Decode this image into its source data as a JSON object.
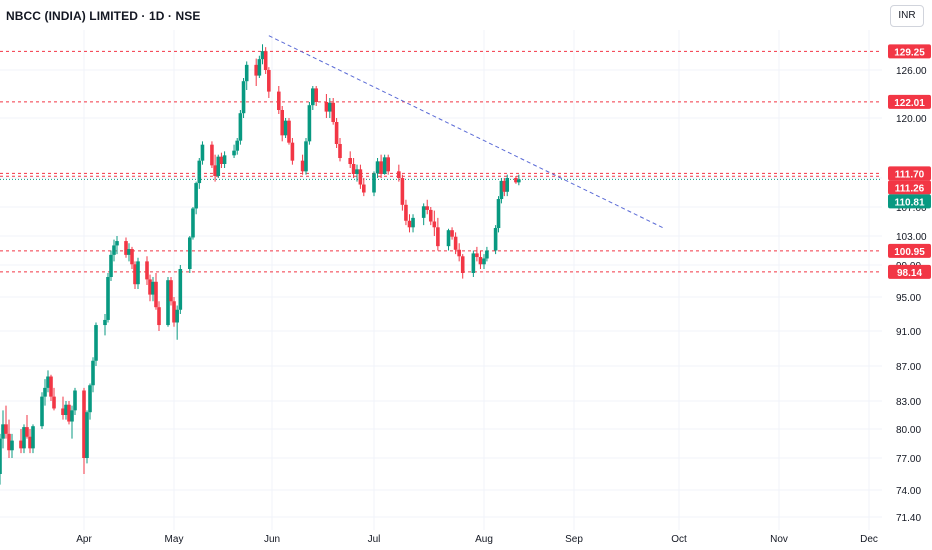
{
  "header": {
    "title": "NBCC (INDIA) LIMITED · 1D · NSE"
  },
  "currency_button": {
    "label": "INR"
  },
  "colors": {
    "up": "#089981",
    "down": "#f23645",
    "level": "#f23645",
    "trend": "#5b6bd6",
    "grid": "#f0f3fa"
  },
  "chart_data": {
    "type": "candlestick",
    "symbol": "NBCC (INDIA) LIMITED",
    "interval": "1D",
    "exchange": "NSE",
    "x_ticks": [
      "Apr",
      "May",
      "Jun",
      "Jul",
      "Aug",
      "Sep",
      "Oct",
      "Nov",
      "Dec"
    ],
    "y_ticks": [
      71.4,
      74.0,
      77.0,
      80.0,
      83.0,
      87.0,
      91.0,
      95.0,
      99.0,
      103.0,
      107.0,
      111.0,
      120.0,
      126.0
    ],
    "y_tick_labels": [
      "71.40",
      "74.00",
      "77.00",
      "80.00",
      "83.00",
      "87.00",
      "91.00",
      "95.00",
      "99.00",
      "103.00",
      "107.00",
      "",
      "120.00",
      "126.00"
    ],
    "ylim": [
      69.5,
      133.0
    ],
    "last_price": {
      "value": 110.81,
      "label": "110.81"
    },
    "levels": [
      {
        "value": 129.25,
        "label": "129.25"
      },
      {
        "value": 122.01,
        "label": "122.01"
      },
      {
        "value": 111.7,
        "label": "111.70"
      },
      {
        "value": 111.26,
        "label": "111.26"
      },
      {
        "value": 100.95,
        "label": "100.95"
      },
      {
        "value": 98.14,
        "label": "98.14"
      }
    ],
    "trendline": {
      "from": {
        "date": "2024-05-31",
        "value": 132.0
      },
      "to": {
        "date": "2024-09-27",
        "value": 104.0
      }
    },
    "start_date": "2024-03-04",
    "end_date": "2024-12-31",
    "candles": [
      [
        75.5,
        79.5,
        74.5,
        79.0
      ],
      [
        79.0,
        82.0,
        78.0,
        80.5
      ],
      [
        80.5,
        82.5,
        79.0,
        79.5
      ],
      [
        79.5,
        81.0,
        77.0,
        77.8
      ],
      [
        77.8,
        79.5,
        77.0,
        78.8
      ],
      [
        78.8,
        80.0,
        77.5,
        78.0
      ],
      [
        78.0,
        80.5,
        77.5,
        80.2
      ],
      [
        80.2,
        81.5,
        79.0,
        79.2
      ],
      [
        79.2,
        80.0,
        77.5,
        78.0
      ],
      [
        78.0,
        80.5,
        77.5,
        80.3
      ],
      [
        80.3,
        84.0,
        80.0,
        83.5
      ],
      [
        83.5,
        85.5,
        82.5,
        84.5
      ],
      [
        84.5,
        86.5,
        84.0,
        85.8
      ],
      [
        85.8,
        86.0,
        83.0,
        83.5
      ],
      [
        83.5,
        84.5,
        82.0,
        82.2
      ],
      [
        82.2,
        83.5,
        81.0,
        81.5
      ],
      [
        81.5,
        83.0,
        81.0,
        82.6
      ],
      [
        82.6,
        83.0,
        80.5,
        80.8
      ],
      [
        80.8,
        82.5,
        79.0,
        82.0
      ],
      [
        82.0,
        84.5,
        81.5,
        84.2
      ],
      [
        84.2,
        84.5,
        75.5,
        77.0
      ],
      [
        77.0,
        82.0,
        76.5,
        81.8
      ],
      [
        81.8,
        85.0,
        81.0,
        84.8
      ],
      [
        84.8,
        88.0,
        84.0,
        87.6
      ],
      [
        87.6,
        92.0,
        87.0,
        91.7
      ],
      [
        91.7,
        93.0,
        90.5,
        92.3
      ],
      [
        92.3,
        98.0,
        92.0,
        97.5
      ],
      [
        97.5,
        101.0,
        97.0,
        100.4
      ],
      [
        100.4,
        102.5,
        99.5,
        101.7
      ],
      [
        101.7,
        103.0,
        100.5,
        102.3
      ],
      [
        102.3,
        102.8,
        100.0,
        100.4
      ],
      [
        100.4,
        102.0,
        99.5,
        101.2
      ],
      [
        101.2,
        101.5,
        98.5,
        99.1
      ],
      [
        99.1,
        99.5,
        96.0,
        96.6
      ],
      [
        96.6,
        100.0,
        96.0,
        99.5
      ],
      [
        99.5,
        100.2,
        96.5,
        97.2
      ],
      [
        97.2,
        97.8,
        94.5,
        95.3
      ],
      [
        95.3,
        97.5,
        94.5,
        96.9
      ],
      [
        96.9,
        98.0,
        93.5,
        93.8
      ],
      [
        93.8,
        94.5,
        91.0,
        91.7
      ],
      [
        91.7,
        97.5,
        91.5,
        97.1
      ],
      [
        97.1,
        97.5,
        94.0,
        94.5
      ],
      [
        94.5,
        95.0,
        91.5,
        92.0
      ],
      [
        92.0,
        94.0,
        90.0,
        93.5
      ],
      [
        93.5,
        99.0,
        93.0,
        98.5
      ],
      [
        98.5,
        103.0,
        98.0,
        102.8
      ],
      [
        102.8,
        107.0,
        102.5,
        106.8
      ],
      [
        106.8,
        110.5,
        106.0,
        110.3
      ],
      [
        110.3,
        114.0,
        109.5,
        113.6
      ],
      [
        113.6,
        116.5,
        113.0,
        116.0
      ],
      [
        116.0,
        116.5,
        112.5,
        112.9
      ],
      [
        112.9,
        114.5,
        110.5,
        111.3
      ],
      [
        111.3,
        114.5,
        111.0,
        114.2
      ],
      [
        114.2,
        114.8,
        112.5,
        113.1
      ],
      [
        113.1,
        115.0,
        112.5,
        114.4
      ],
      [
        114.4,
        116.0,
        114.0,
        115.1
      ],
      [
        115.1,
        117.0,
        114.5,
        116.6
      ],
      [
        116.6,
        121.0,
        116.0,
        120.6
      ],
      [
        120.6,
        125.0,
        120.0,
        124.6
      ],
      [
        124.6,
        127.5,
        123.5,
        126.9
      ],
      [
        126.9,
        128.0,
        124.0,
        125.3
      ],
      [
        125.3,
        128.5,
        125.0,
        127.9
      ],
      [
        127.9,
        130.5,
        127.0,
        129.3
      ],
      [
        129.3,
        130.0,
        125.5,
        126.0
      ],
      [
        126.0,
        126.5,
        122.5,
        123.3
      ],
      [
        123.3,
        124.0,
        120.5,
        121.0
      ],
      [
        121.0,
        121.5,
        116.5,
        117.4
      ],
      [
        117.4,
        120.0,
        117.0,
        119.6
      ],
      [
        119.6,
        120.0,
        116.0,
        116.3
      ],
      [
        116.3,
        117.0,
        113.0,
        113.6
      ],
      [
        113.6,
        114.5,
        111.5,
        112.0
      ],
      [
        112.0,
        117.0,
        111.5,
        116.5
      ],
      [
        116.5,
        122.0,
        116.0,
        121.6
      ],
      [
        121.6,
        124.0,
        121.0,
        123.7
      ],
      [
        123.7,
        124.0,
        121.5,
        122.0
      ],
      [
        122.0,
        123.0,
        120.0,
        120.8
      ],
      [
        120.8,
        122.5,
        120.0,
        121.9
      ],
      [
        121.9,
        122.5,
        119.0,
        119.4
      ],
      [
        119.4,
        120.0,
        115.5,
        116.1
      ],
      [
        116.1,
        117.0,
        113.5,
        114.0
      ],
      [
        114.0,
        115.0,
        112.5,
        113.1
      ],
      [
        113.1,
        114.0,
        111.0,
        111.6
      ],
      [
        111.6,
        113.0,
        110.5,
        112.3
      ],
      [
        112.3,
        113.0,
        109.5,
        110.1
      ],
      [
        110.1,
        111.0,
        108.5,
        109.0
      ],
      [
        109.0,
        112.0,
        108.5,
        111.7
      ],
      [
        111.7,
        114.0,
        111.0,
        113.5
      ],
      [
        113.5,
        114.5,
        111.0,
        111.6
      ],
      [
        111.6,
        114.5,
        111.5,
        114.1
      ],
      [
        114.1,
        114.5,
        111.5,
        112.0
      ],
      [
        112.0,
        113.0,
        110.5,
        111.0
      ],
      [
        111.0,
        111.5,
        106.5,
        107.3
      ],
      [
        107.3,
        108.0,
        104.5,
        105.1
      ],
      [
        105.1,
        106.0,
        103.5,
        104.2
      ],
      [
        104.2,
        106.0,
        103.5,
        105.5
      ],
      [
        105.5,
        107.5,
        104.5,
        107.1
      ],
      [
        107.1,
        108.0,
        106.0,
        106.6
      ],
      [
        106.6,
        107.0,
        104.5,
        105.0
      ],
      [
        105.0,
        106.5,
        103.0,
        104.2
      ],
      [
        104.2,
        105.5,
        101.0,
        101.6
      ],
      [
        101.6,
        104.0,
        101.0,
        103.8
      ],
      [
        103.8,
        104.2,
        102.5,
        102.9
      ],
      [
        102.9,
        103.5,
        100.5,
        101.1
      ],
      [
        101.1,
        102.0,
        99.5,
        100.2
      ],
      [
        100.2,
        100.5,
        97.3,
        98.0
      ],
      [
        98.0,
        101.0,
        97.5,
        100.6
      ],
      [
        100.6,
        101.5,
        99.5,
        100.1
      ],
      [
        100.1,
        101.0,
        98.5,
        99.1
      ],
      [
        99.1,
        100.5,
        98.5,
        99.9
      ],
      [
        99.9,
        101.5,
        99.5,
        101.0
      ],
      [
        101.0,
        104.5,
        100.5,
        104.1
      ],
      [
        104.1,
        108.5,
        103.5,
        108.1
      ],
      [
        108.1,
        111.0,
        107.5,
        110.6
      ],
      [
        110.6,
        111.0,
        108.5,
        109.1
      ],
      [
        109.1,
        111.5,
        108.5,
        111.0
      ],
      [
        111.0,
        111.3,
        110.2,
        110.4
      ],
      [
        110.4,
        111.5,
        110.0,
        110.81
      ]
    ]
  }
}
